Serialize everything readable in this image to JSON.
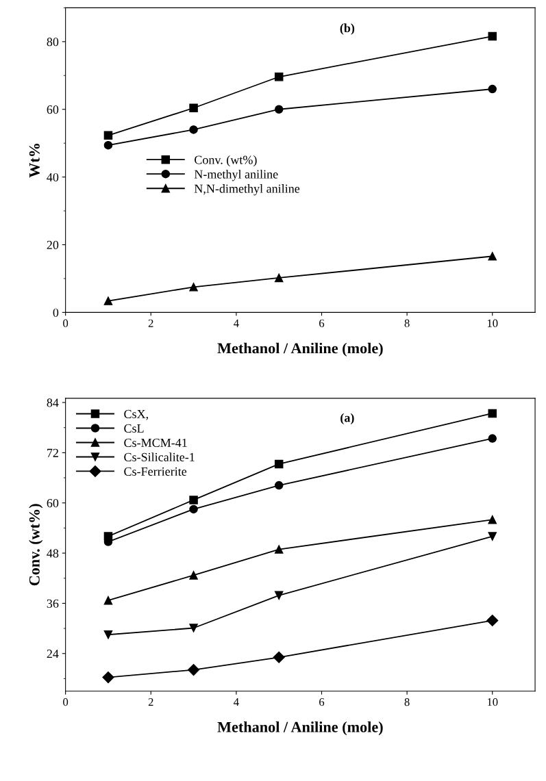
{
  "chart_data": [
    {
      "type": "line",
      "annotations": [
        "(b)"
      ],
      "xlabel": "Methanol / Aniline (mole)",
      "ylabel": "Wt%",
      "x": [
        1,
        3,
        5,
        10
      ],
      "xlim": [
        0,
        11
      ],
      "xticks": [
        0,
        2,
        4,
        6,
        8,
        10
      ],
      "ylim": [
        0,
        90
      ],
      "yticks": [
        0,
        20,
        40,
        60,
        80
      ],
      "grid": false,
      "legend": "center left",
      "series": [
        {
          "name": "Conv. (wt%)",
          "color": "#000000",
          "marker": "square",
          "values": [
            52.3,
            60.4,
            69.6,
            81.6
          ]
        },
        {
          "name": "N-methyl aniline",
          "color": "#000000",
          "marker": "circle",
          "values": [
            49.4,
            54,
            60,
            66
          ]
        },
        {
          "name": "N,N-dimethyl aniline",
          "color": "#000000",
          "marker": "triangle",
          "values": [
            3.4,
            7.5,
            10.2,
            16.6
          ]
        }
      ]
    },
    {
      "type": "line",
      "annotations": [
        "(a)"
      ],
      "xlabel": "Methanol / Aniline (mole)",
      "ylabel": "Conv. (wt%)",
      "x": [
        1,
        3,
        5,
        10
      ],
      "xlim": [
        0,
        11
      ],
      "xticks": [
        0,
        2,
        4,
        6,
        8,
        10
      ],
      "ylim": [
        15,
        85
      ],
      "yticks": [
        24,
        36,
        48,
        60,
        72,
        84
      ],
      "grid": false,
      "legend": "top left",
      "series": [
        {
          "name": "CsX,",
          "color": "#000000",
          "marker": "square",
          "values": [
            52,
            60.7,
            69.3,
            81.4
          ]
        },
        {
          "name": "CsL",
          "color": "#000000",
          "marker": "circle",
          "values": [
            50.7,
            58.5,
            64.2,
            75.4
          ]
        },
        {
          "name": "Cs-MCM-41",
          "color": "#000000",
          "marker": "triangle",
          "values": [
            36.7,
            42.7,
            48.9,
            56
          ]
        },
        {
          "name": "Cs-Silicalite-1",
          "color": "#000000",
          "marker": "triangle_down",
          "values": [
            28.5,
            30.1,
            37.9,
            52
          ]
        },
        {
          "name": "Cs-Ferrierite",
          "color": "#000000",
          "marker": "diamond",
          "values": [
            18.3,
            20.1,
            23.1,
            31.9
          ]
        }
      ]
    }
  ]
}
